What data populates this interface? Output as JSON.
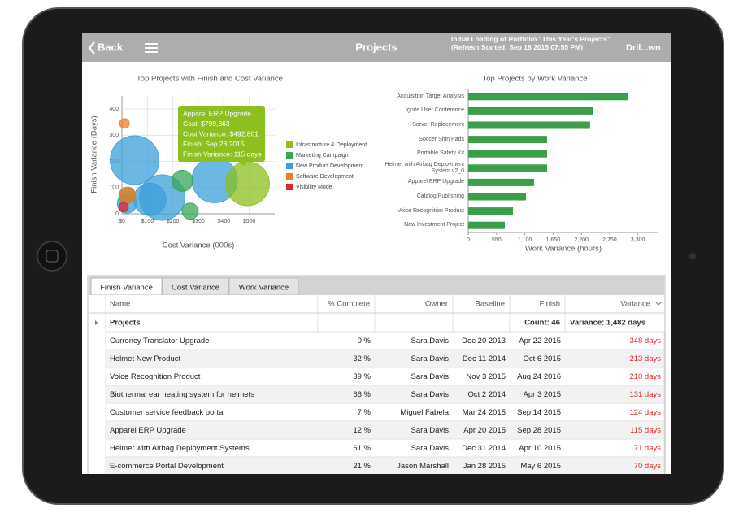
{
  "header": {
    "back": "Back",
    "title": "Projects",
    "status": "Initial Loading of Portfolio \"This Year's Projects\" (Refresh Started: Sep 18 2015 07:55 PM)",
    "action": "Dril...wn"
  },
  "chart_data": [
    {
      "type": "bubble",
      "title": "Top Projects with Finish and Cost Variance",
      "x_label": "Cost Variance (000s)",
      "y_label": "Finish Variance (Days)",
      "xlim": [
        0,
        600
      ],
      "ylim": [
        0,
        450
      ],
      "xticks": [
        {
          "value": 0,
          "label": "$0"
        },
        {
          "value": 100,
          "label": "$100"
        },
        {
          "value": 200,
          "label": "$200"
        },
        {
          "value": 300,
          "label": "$300"
        },
        {
          "value": 400,
          "label": "$400"
        },
        {
          "value": 500,
          "label": "$500"
        }
      ],
      "yticks": [
        0,
        100,
        200,
        300,
        400
      ],
      "grid": true,
      "series": [
        {
          "name": "New Product Development",
          "color": "#3c9fd9",
          "x": [
            50,
            364,
            158,
            110,
            20
          ],
          "values": [
            205,
            129,
            62,
            55,
            40
          ],
          "sizes": [
            30,
            28,
            28,
            20,
            12
          ]
        },
        {
          "name": "Marketing Campaign",
          "color": "#3aa655",
          "x": [
            237,
            268,
            20
          ],
          "values": [
            126,
            10,
            70
          ],
          "sizes": [
            13,
            10,
            10
          ]
        },
        {
          "name": "Infrastructure & Deployment",
          "color": "#8cbf1f",
          "x": [
            492.8
          ],
          "values": [
            115
          ],
          "sizes": [
            27
          ]
        },
        {
          "name": "Software Development",
          "color": "#f07b28",
          "x": [
            10,
            22
          ],
          "values": [
            345,
            71
          ],
          "sizes": [
            6,
            10
          ]
        },
        {
          "name": "Visibility Mode",
          "color": "#e0262a",
          "x": [
            6
          ],
          "values": [
            25
          ],
          "sizes": [
            6
          ]
        }
      ],
      "legend_order": [
        2,
        1,
        0,
        3,
        4
      ],
      "tooltip": [
        "Apparel ERP Upgrade",
        "Cost: $799,363",
        "Cost Variance: $492,801",
        "Finish: Sep 28 2015",
        "Finish Variance: 115 days"
      ]
    },
    {
      "type": "bar",
      "orientation": "horizontal",
      "title": "Top Projects by Work Variance",
      "x_label": "Work Variance (hours)",
      "color": "#3a9e4a",
      "categories": [
        "Acquisition Target Analysis",
        "Ignite User Conference",
        "Server Replacement",
        "Soccer Shin Pads",
        "Portable Safety Kit",
        "Helmet with Airbag Deployment System v2_0",
        "Apparel ERP Upgrade",
        "Catalog Publishing",
        "Voice Recognition Product",
        "New Investment Project"
      ],
      "values": [
        3098,
        2434,
        2370,
        1533,
        1533,
        1533,
        1280,
        1122,
        870,
        711
      ],
      "xlim": [
        0,
        3700
      ],
      "xticks": [
        0,
        550,
        {
          "value": 1100,
          "label": "1,100"
        },
        {
          "value": 1650,
          "label": "1,650"
        },
        {
          "value": 2200,
          "label": "2,200"
        },
        {
          "value": 2750,
          "label": "2,750"
        },
        {
          "value": 3300,
          "label": "3,300"
        }
      ]
    }
  ],
  "tabs": [
    "Finish Variance",
    "Cost Variance",
    "Work Variance"
  ],
  "table": {
    "columns": [
      "Name",
      "% Complete",
      "Owner",
      "Baseline",
      "Finish",
      "Variance"
    ],
    "group": [
      "Projects",
      "Count: 46",
      "Variance: 1,482 days"
    ],
    "rows": [
      [
        "Currency Translator Upgrade",
        "0 %",
        "Sara Davis",
        "Dec 20 2013",
        "Apr 22 2015",
        "348 days"
      ],
      [
        "Helmet New Product",
        "32 %",
        "Sara Davis",
        "Dec 11 2014",
        "Oct 6 2015",
        "213 days"
      ],
      [
        "Voice Recognition Product",
        "39 %",
        "Sara Davis",
        "Nov 3 2015",
        "Aug 24 2016",
        "210 days"
      ],
      [
        "Biothermal ear heating system for helmets",
        "66 %",
        "Sara Davis",
        "Oct 2 2014",
        "Apr 3 2015",
        "131 days"
      ],
      [
        "Customer service feedback portal",
        "7 %",
        "Miguel Fabela",
        "Mar 24 2015",
        "Sep 14 2015",
        "124 days"
      ],
      [
        "Apparel ERP Upgrade",
        "12 %",
        "Sara Davis",
        "Apr 20 2015",
        "Sep 28 2015",
        "115 days"
      ],
      [
        "Helmet with Airbag Deployment Systems",
        "61 %",
        "Sara Davis",
        "Dec 31 2014",
        "Apr 10 2015",
        "71 days"
      ],
      [
        "E-commerce Portal Development",
        "21 %",
        "Jason Marshall",
        "Jan 28 2015",
        "May 6 2015",
        "70 days"
      ]
    ]
  }
}
